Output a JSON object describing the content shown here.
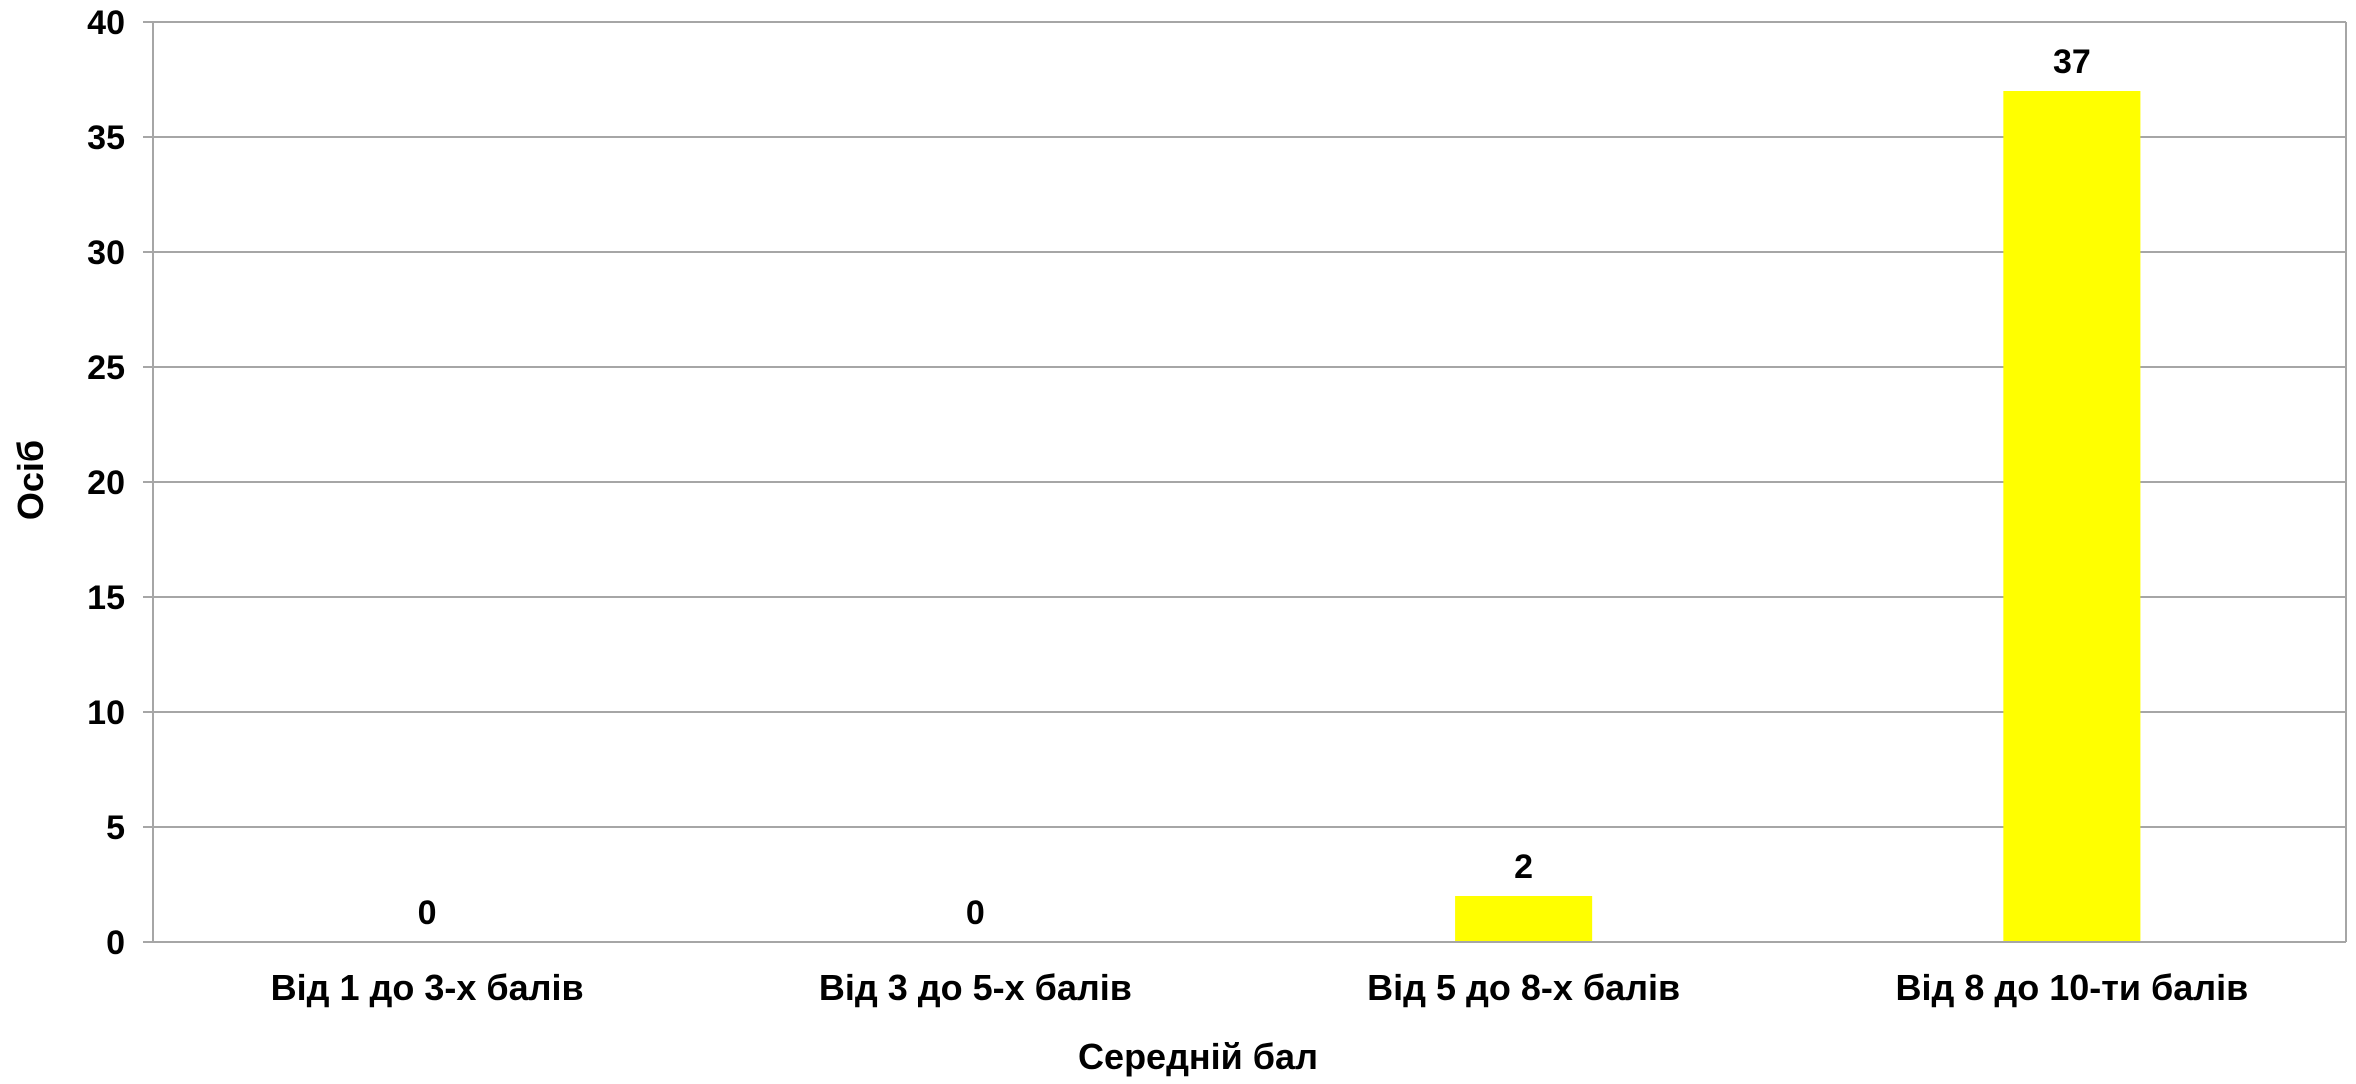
{
  "chart_data": {
    "type": "bar",
    "title": "",
    "xlabel": "Середній бал",
    "ylabel": "Осіб",
    "categories": [
      "Від 1 до 3-х балів",
      "Від 3 до 5-х балів",
      "Від 5 до 8-х балів",
      "Від 8 до 10-ти балів"
    ],
    "series": [
      {
        "values": [
          0,
          0,
          2,
          37
        ],
        "color": "#FFFF00"
      }
    ],
    "data_labels": [
      "0",
      "0",
      "2",
      "37"
    ],
    "yticks": [
      0,
      5,
      10,
      15,
      20,
      25,
      30,
      35,
      40
    ],
    "ylim": [
      0,
      40
    ],
    "grid": true,
    "legend": "none",
    "colors": {
      "bar": "#FFFF00",
      "grid": "#A6A6A6",
      "axis": "#A6A6A6",
      "text": "#000000"
    }
  }
}
